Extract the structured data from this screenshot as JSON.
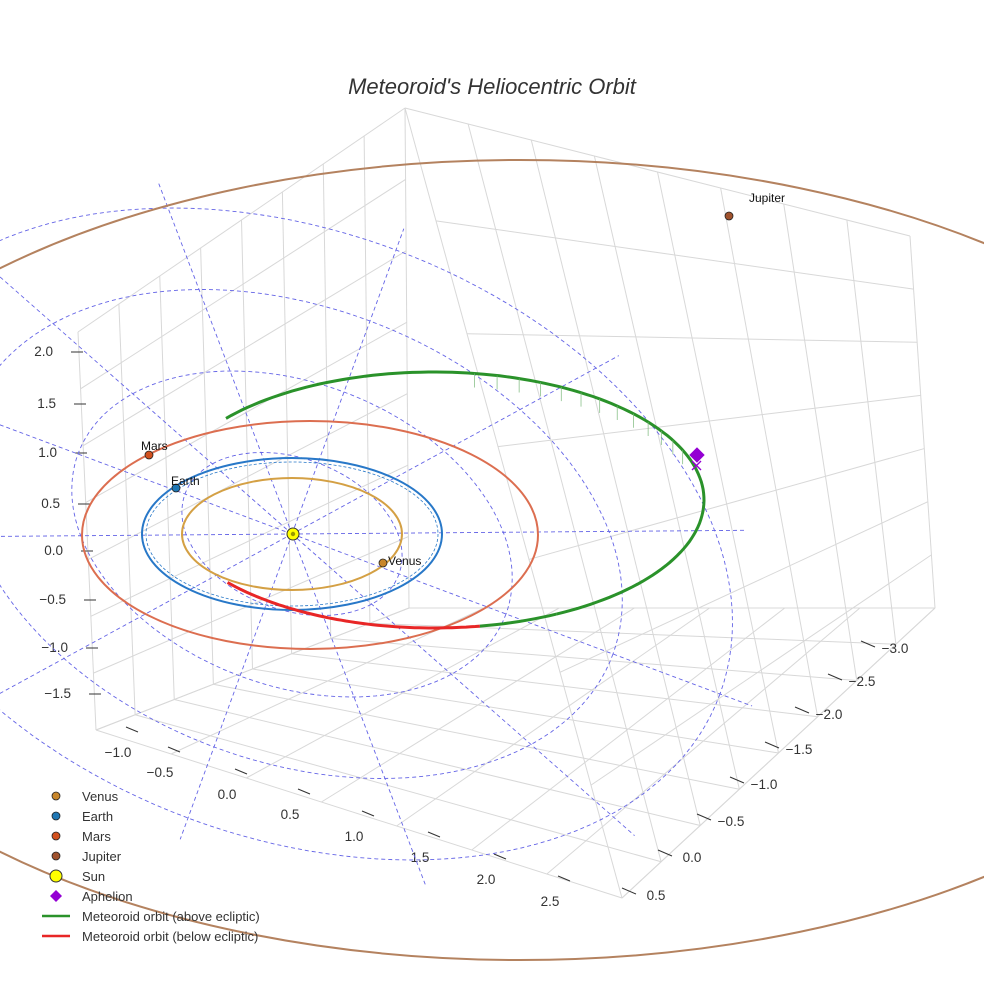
{
  "chart_data": {
    "type": "scatter",
    "title": "Meteoroid's Heliocentric Orbit",
    "x_ticks": [
      "−1.0",
      "−0.5",
      "0.0",
      "0.5",
      "1.0",
      "1.5",
      "2.0",
      "2.5"
    ],
    "y_ticks": [
      "0.5",
      "0.0",
      "−0.5",
      "−1.0",
      "−1.5",
      "−2.0",
      "−2.5",
      "−3.0"
    ],
    "z_ticks": [
      "2.0",
      "1.5",
      "1.0",
      "0.5",
      "0.0",
      "−0.5",
      "−1.0",
      "−1.5"
    ],
    "xlim": [
      -1.2,
      2.7
    ],
    "ylim": [
      -3.1,
      0.6
    ],
    "zlim": [
      -1.6,
      2.1
    ],
    "grid": true,
    "legend_position": "bottom-left",
    "bodies": [
      {
        "name": "Venus",
        "label": "Venus",
        "color": "#c8862a",
        "orbit_color": "#d4a044",
        "orbit_radius_au": 0.72
      },
      {
        "name": "Earth",
        "label": "Earth",
        "color": "#1f77b4",
        "orbit_color": "#2878c8",
        "orbit_radius_au": 1.0
      },
      {
        "name": "Mars",
        "label": "Mars",
        "color": "#d2501e",
        "orbit_color": "#dc6e50",
        "orbit_radius_au": 1.52
      },
      {
        "name": "Jupiter",
        "label": "Jupiter",
        "color": "#a0522d",
        "orbit_color": "#b4825f",
        "orbit_radius_au": 5.2
      }
    ],
    "sun": {
      "name": "Sun",
      "color": "#ffff00"
    },
    "aphelion": {
      "name": "Aphelion",
      "color": "#9400d3"
    },
    "series": [
      {
        "name": "Meteoroid orbit (above ecliptic)",
        "color": "#2a922a"
      },
      {
        "name": "Meteoroid orbit (below ecliptic)",
        "color": "#e82626"
      }
    ],
    "legend": [
      {
        "label": "Venus",
        "marker": "circle",
        "color": "#c8862a"
      },
      {
        "label": "Earth",
        "marker": "circle",
        "color": "#1f77b4"
      },
      {
        "label": "Mars",
        "marker": "circle",
        "color": "#d2501e"
      },
      {
        "label": "Jupiter",
        "marker": "circle",
        "color": "#a0522d"
      },
      {
        "label": "Sun",
        "marker": "sun",
        "color": "#ffff00"
      },
      {
        "label": "Aphelion",
        "marker": "diamond",
        "color": "#9400d3"
      },
      {
        "label": "Meteoroid orbit (above ecliptic)",
        "marker": "line",
        "color": "#2a922a"
      },
      {
        "label": "Meteoroid orbit (below ecliptic)",
        "marker": "line",
        "color": "#e82626"
      }
    ]
  }
}
